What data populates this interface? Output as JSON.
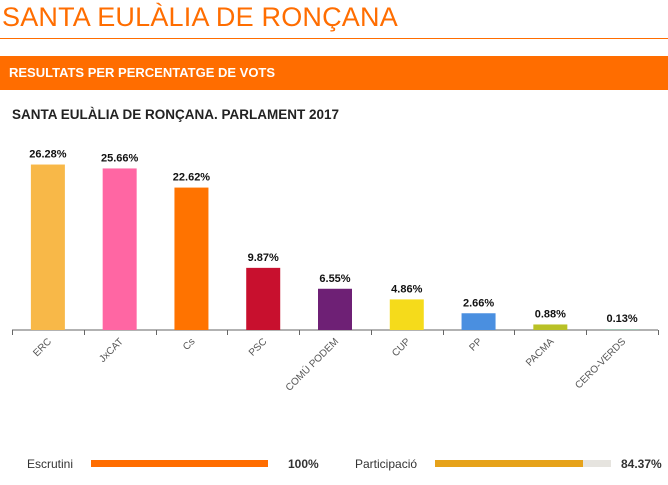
{
  "header": {
    "page_title": "SANTA EULÀLIA DE RONÇANA",
    "banner": "RESULTATS PER PERCENTATGE DE VOTS",
    "accent_color": "#ff6d00"
  },
  "chart_data": {
    "type": "bar",
    "title": "SANTA EULÀLIA DE RONÇANA. PARLAMENT 2017",
    "xlabel": "",
    "ylabel": "",
    "ylim": [
      0,
      27
    ],
    "grid": false,
    "categories": [
      "ERC",
      "JxCAT",
      "Cs",
      "PSC",
      "COMÚ PODEM",
      "CUP",
      "PP",
      "PACMA",
      "CERO-VERDS"
    ],
    "values": [
      26.28,
      25.66,
      22.62,
      9.87,
      6.55,
      4.86,
      2.66,
      0.88,
      0.13
    ],
    "value_labels": [
      "26.28%",
      "25.66%",
      "22.62%",
      "9.87%",
      "6.55%",
      "4.86%",
      "2.66%",
      "0.88%",
      "0.13%"
    ],
    "colors": [
      "#f8b848",
      "#ff66a3",
      "#ff7300",
      "#c8102e",
      "#6e2075",
      "#f5db1b",
      "#4a8fe0",
      "#b9c126",
      "#8fb7a3"
    ]
  },
  "footer": {
    "escrutini": {
      "label": "Escrutini",
      "value_text": "100%",
      "fraction": 1.0,
      "color": "#ff6d00"
    },
    "participacio": {
      "label": "Participació",
      "value_text": "84.37%",
      "fraction": 0.8437,
      "color": "#e6a21a"
    }
  }
}
